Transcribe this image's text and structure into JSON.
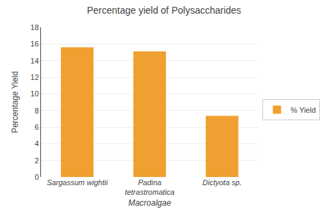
{
  "chart_data": {
    "type": "bar",
    "title": "Percentage yield of Polysaccharides",
    "xlabel": "Macroalgae",
    "ylabel": "Percentage Yield",
    "categories": [
      "Sargassum wightii",
      "Padina\ntetrastromatica",
      "Dictyota sp."
    ],
    "series": [
      {
        "name": "% Yield",
        "color": "#F0A030",
        "values": [
          15.6,
          15.1,
          7.35
        ]
      }
    ],
    "ylim": [
      0,
      18
    ],
    "yticks": [
      0,
      2,
      4,
      6,
      8,
      10,
      12,
      14,
      16,
      18
    ],
    "grid": true,
    "legend": "right"
  }
}
